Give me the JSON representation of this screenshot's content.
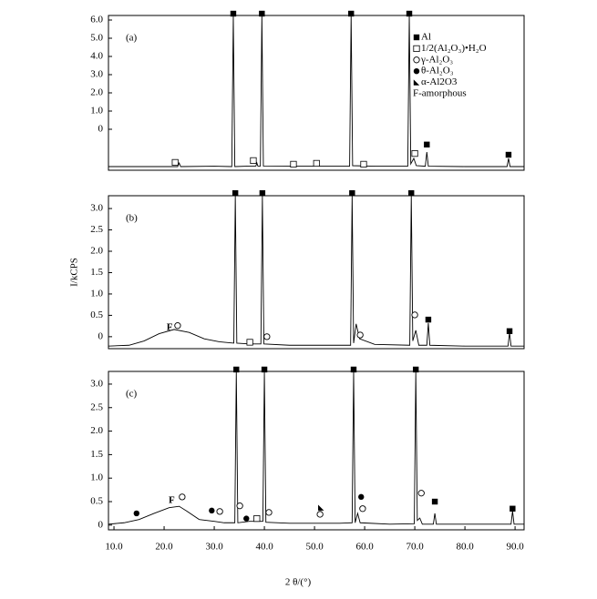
{
  "chart_data": [
    {
      "type": "line",
      "label": "(a)",
      "xlim": [
        8.9,
        91.8
      ],
      "ylim": [
        -2.25,
        6.25
      ],
      "yticks": [
        {
          "value": 6,
          "label": "6.0"
        },
        {
          "value": 5,
          "label": "5.0"
        },
        {
          "value": 4,
          "label": "4.0"
        },
        {
          "value": 3,
          "label": "3.0"
        },
        {
          "value": 2,
          "label": "2.0"
        },
        {
          "value": 1,
          "label": "1.0"
        },
        0
      ],
      "x": [
        8.9,
        20,
        22.7,
        23,
        23.3,
        30,
        33.5,
        33.8,
        34.1,
        37,
        38.3,
        38.5,
        38.7,
        39.2,
        39.5,
        39.8,
        45,
        50,
        57,
        57.3,
        57.6,
        62,
        68.6,
        68.9,
        69.2,
        69.8,
        70.3,
        72.1,
        72.4,
        72.7,
        80,
        88.4,
        88.7,
        89,
        91.8
      ],
      "series": [
        {
          "color": "#000000",
          "values": [
            -2.05,
            -2.05,
            -2.05,
            -1.85,
            -2.05,
            -2.03,
            -2.05,
            6.25,
            -2.05,
            -2.02,
            -2.02,
            -1.85,
            -2.02,
            -2.02,
            6.25,
            -2.02,
            -2.03,
            -2.03,
            -2.03,
            6.25,
            -2.0,
            -2.03,
            -2.03,
            6.25,
            -1.9,
            -1.6,
            -2.0,
            -2.03,
            -1.25,
            -2.03,
            -2.05,
            -2.05,
            -1.6,
            -2.05,
            -2.05
          ]
        }
      ],
      "legend": [
        {
          "name": "Al",
          "symbol": "filled-square"
        },
        {
          "name": "1/2(Al₂O₃)•H₂O",
          "symbol": "open-square"
        },
        {
          "name": "γ-Al₂O₃",
          "symbol": "open-circle"
        },
        {
          "name": "θ-Al₂O₃",
          "symbol": "filled-circle"
        },
        {
          "name": "α-Al2O3",
          "symbol": "triangle"
        },
        {
          "name": "F-amorphous",
          "symbol": "F"
        }
      ],
      "markers": [
        {
          "x": [
            33.8,
            39.5,
            57.3,
            68.9,
            72.4,
            88.7
          ],
          "y": [
            6.35,
            6.35,
            6.35,
            6.35,
            -0.84,
            -1.4
          ]
        },
        {
          "x": [
            22.2,
            37.8,
            45.8,
            50.4,
            59.8,
            70
          ],
          "y": [
            -1.82,
            -1.72,
            -1.92,
            -1.87,
            -1.92,
            -1.33
          ]
        },
        {
          "x": [],
          "y": []
        },
        {
          "x": [],
          "y": []
        },
        {
          "x": [],
          "y": []
        },
        {
          "x": [],
          "y": []
        }
      ]
    },
    {
      "type": "line",
      "label": "(b)",
      "xlim": [
        8.9,
        91.8
      ],
      "ylim": [
        -0.28,
        3.3
      ],
      "ylabel": "I/kCPS",
      "yticks": [
        {
          "value": 3,
          "label": "3.0"
        },
        2.5,
        {
          "value": 2,
          "label": "2.0"
        },
        1.5,
        {
          "value": 1,
          "label": "1.0"
        },
        0.5,
        0
      ],
      "x": [
        8.9,
        13,
        16,
        19,
        22,
        25,
        28,
        31,
        33.9,
        34.2,
        34.5,
        37,
        39.3,
        39.6,
        39.9,
        45,
        50,
        57.2,
        57.5,
        57.8,
        58.3,
        59,
        62,
        69,
        69.3,
        69.6,
        70.2,
        70.8,
        72.4,
        72.7,
        73,
        80,
        88.6,
        88.9,
        89.2,
        91.8
      ],
      "series": [
        {
          "color": "#000000",
          "values": [
            -0.22,
            -0.2,
            -0.1,
            0.07,
            0.17,
            0.1,
            -0.05,
            -0.12,
            -0.15,
            3.3,
            -0.15,
            -0.17,
            -0.17,
            3.3,
            -0.17,
            -0.2,
            -0.2,
            -0.2,
            3.3,
            -0.15,
            0.3,
            -0.05,
            -0.18,
            -0.2,
            3.3,
            -0.1,
            0.15,
            -0.2,
            -0.2,
            0.32,
            -0.2,
            -0.22,
            -0.22,
            0.1,
            -0.22,
            -0.22
          ]
        }
      ],
      "markers": [
        {
          "x": [
            34.2,
            39.6,
            57.5,
            69.3,
            72.7,
            88.9
          ],
          "y": [
            3.36,
            3.36,
            3.36,
            3.36,
            0.4,
            0.13
          ]
        },
        {
          "x": [
            37.1
          ],
          "y": [
            -0.13
          ]
        },
        {
          "x": [
            22.7,
            40.5,
            59.1,
            70
          ],
          "y": [
            0.26,
            0,
            0.04,
            0.51
          ]
        },
        {
          "x": [],
          "y": []
        },
        {
          "x": [],
          "y": []
        },
        {
          "x": [
            21.1
          ],
          "y": [
            0.21
          ]
        }
      ]
    },
    {
      "type": "line",
      "label": "(c)",
      "xlim": [
        8.9,
        91.8
      ],
      "ylim": [
        -0.1,
        3.27
      ],
      "xlabel": "2 θ/(°)",
      "yticks": [
        {
          "value": 3,
          "label": "3.0"
        },
        2.5,
        {
          "value": 2,
          "label": "2.0"
        },
        1.5,
        {
          "value": 1,
          "label": "1.0"
        },
        0.5,
        0
      ],
      "xticks": [
        {
          "value": 10,
          "label": "10.0"
        },
        {
          "value": 20,
          "label": "20.0"
        },
        {
          "value": 30,
          "label": "30.0"
        },
        {
          "value": 40,
          "label": "40.0"
        },
        {
          "value": 50,
          "label": "50.0"
        },
        {
          "value": 60,
          "label": "60.0"
        },
        {
          "value": 70,
          "label": "70.0"
        },
        {
          "value": 80,
          "label": "80.0"
        },
        {
          "value": 90,
          "label": "90.0"
        }
      ],
      "x": [
        8.9,
        12,
        15,
        18,
        21,
        23,
        24.5,
        27,
        30,
        32,
        34.1,
        34.4,
        34.7,
        37,
        39.7,
        40,
        40.3,
        45,
        50,
        55,
        57.5,
        57.8,
        58.1,
        58.6,
        59.1,
        65,
        69.9,
        70.2,
        70.5,
        71,
        71.5,
        73.7,
        74,
        74.3,
        80,
        89.2,
        89.5,
        89.8,
        91.8
      ],
      "series": [
        {
          "color": "#000000",
          "values": [
            0.02,
            0.05,
            0.12,
            0.25,
            0.37,
            0.4,
            0.3,
            0.12,
            0.08,
            0.05,
            0.05,
            3.27,
            0.05,
            0.08,
            0.08,
            3.27,
            0.06,
            0.04,
            0.04,
            0.04,
            0.05,
            3.27,
            0.05,
            0.25,
            0.05,
            0.02,
            0.03,
            3.27,
            0.1,
            0.15,
            0.02,
            0.02,
            0.25,
            0.02,
            0.02,
            0.02,
            0.3,
            0.02,
            0.02
          ]
        }
      ],
      "markers": [
        {
          "x": [
            34.4,
            40.0,
            57.8,
            70.2,
            74.0,
            89.5
          ],
          "y": [
            3.31,
            3.31,
            3.31,
            3.31,
            0.5,
            0.35
          ]
        },
        {
          "x": [
            38.5
          ],
          "y": [
            0.14
          ]
        },
        {
          "x": [
            23.6,
            31.1,
            35.1,
            40.9,
            51.1,
            59.6,
            71.3
          ],
          "y": [
            0.6,
            0.29,
            0.41,
            0.27,
            0.23,
            0.35,
            0.68
          ]
        },
        {
          "x": [
            14.5,
            29.5,
            36.4,
            59.3
          ],
          "y": [
            0.25,
            0.31,
            0.14,
            0.6
          ]
        },
        {
          "x": [
            51.3
          ],
          "y": [
            0.37
          ]
        },
        {
          "x": [
            21.5
          ],
          "y": [
            0.52
          ]
        }
      ]
    }
  ]
}
